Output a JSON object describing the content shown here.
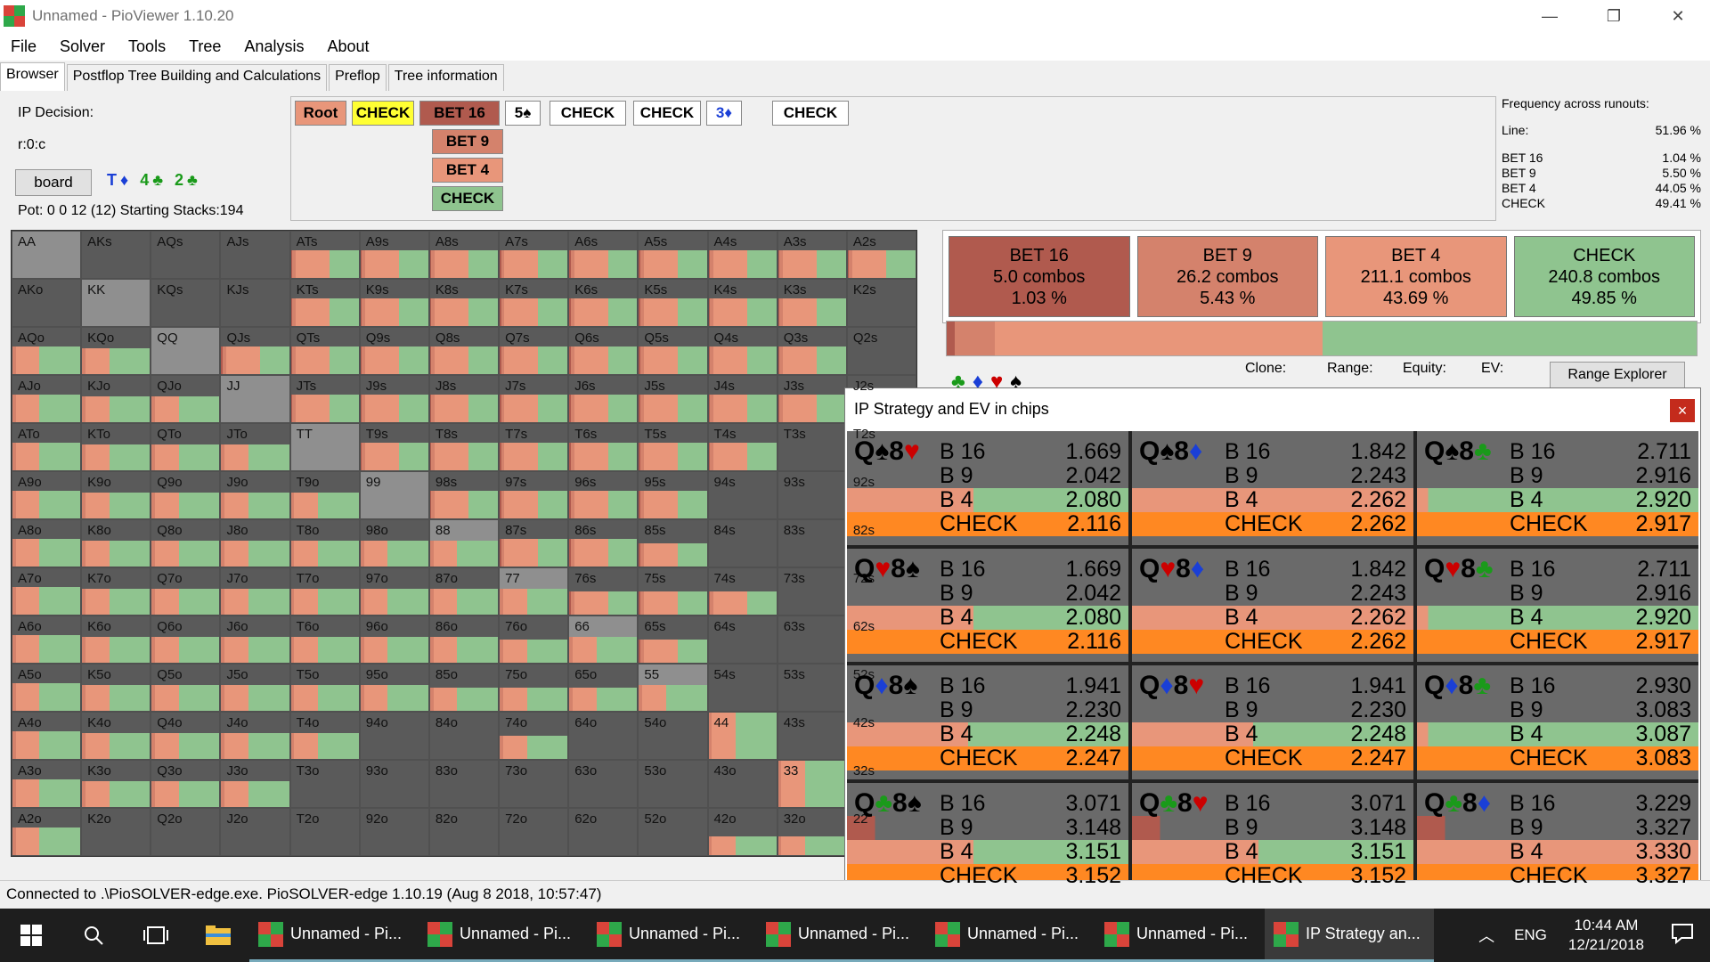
{
  "window": {
    "title": "Unnamed - PioViewer 1.10.20",
    "min": "—",
    "max": "❐",
    "close": "✕"
  },
  "menu": [
    "File",
    "Solver",
    "Tools",
    "Tree",
    "Analysis",
    "About"
  ],
  "tabs": [
    "Browser",
    "Postflop Tree Building and Calculations",
    "Preflop",
    "Tree information"
  ],
  "left": {
    "decision": "IP Decision:",
    "node": "r:0:c",
    "board_btn": "board",
    "board_cards": "T♦ 4♣ 2♣",
    "pot": "Pot: 0 0 12 (12) Starting Stacks:194"
  },
  "tree": {
    "row1": [
      {
        "label": "Root",
        "bg": "#e8967a"
      },
      {
        "label": "CHECK",
        "bg": "#ffff33"
      },
      {
        "label": "BET 16",
        "bg": "#b05a4e"
      },
      {
        "label": "5♠",
        "bg": "#fff"
      },
      {
        "label": "CHECK",
        "bg": "#fff"
      },
      {
        "label": "CHECK",
        "bg": "#fff"
      },
      {
        "label": "3♦",
        "bg": "#fff"
      },
      {
        "label": "CHECK",
        "bg": "#fff"
      }
    ],
    "col": [
      {
        "label": "BET 9",
        "bg": "#d4826c"
      },
      {
        "label": "BET 4",
        "bg": "#e8967a"
      },
      {
        "label": "CHECK",
        "bg": "#8fc48f"
      }
    ]
  },
  "freq": {
    "title": "Frequency across runouts:",
    "line_label": "Line:",
    "line_value": "51.96 %",
    "rows": [
      {
        "k": "BET 16",
        "v": "1.04 %"
      },
      {
        "k": "BET 9",
        "v": "5.50 %"
      },
      {
        "k": "BET 4",
        "v": "44.05 %"
      },
      {
        "k": "CHECK",
        "v": "49.41 %"
      }
    ]
  },
  "hands": [
    "AA",
    "AKs",
    "AQs",
    "AJs",
    "ATs",
    "A9s",
    "A8s",
    "A7s",
    "A6s",
    "A5s",
    "A4s",
    "A3s",
    "A2s",
    "AKo",
    "KK",
    "KQs",
    "KJs",
    "KTs",
    "K9s",
    "K8s",
    "K7s",
    "K6s",
    "K5s",
    "K4s",
    "K3s",
    "K2s",
    "AQo",
    "KQo",
    "QQ",
    "QJs",
    "QTs",
    "Q9s",
    "Q8s",
    "Q7s",
    "Q6s",
    "Q5s",
    "Q4s",
    "Q3s",
    "Q2s",
    "AJo",
    "KJo",
    "QJo",
    "JJ",
    "JTs",
    "J9s",
    "J8s",
    "J7s",
    "J6s",
    "J5s",
    "J4s",
    "J3s",
    "J2s",
    "ATo",
    "KTo",
    "QTo",
    "JTo",
    "TT",
    "T9s",
    "T8s",
    "T7s",
    "T6s",
    "T5s",
    "T4s",
    "T3s",
    "T2s",
    "A9o",
    "K9o",
    "Q9o",
    "J9o",
    "T9o",
    "99",
    "98s",
    "97s",
    "96s",
    "95s",
    "94s",
    "93s",
    "92s",
    "A8o",
    "K8o",
    "Q8o",
    "J8o",
    "T8o",
    "98o",
    "88",
    "87s",
    "86s",
    "85s",
    "84s",
    "83s",
    "82s",
    "A7o",
    "K7o",
    "Q7o",
    "J7o",
    "T7o",
    "97o",
    "87o",
    "77",
    "76s",
    "75s",
    "74s",
    "73s",
    "72s",
    "A6o",
    "K6o",
    "Q6o",
    "J6o",
    "T6o",
    "96o",
    "86o",
    "76o",
    "66",
    "65s",
    "64s",
    "63s",
    "62s",
    "A5o",
    "K5o",
    "Q5o",
    "J5o",
    "T5o",
    "95o",
    "85o",
    "75o",
    "65o",
    "55",
    "54s",
    "53s",
    "52s",
    "A4o",
    "K4o",
    "Q4o",
    "J4o",
    "T4o",
    "94o",
    "84o",
    "74o",
    "64o",
    "54o",
    "44",
    "43s",
    "42s",
    "A3o",
    "K3o",
    "Q3o",
    "J3o",
    "T3o",
    "93o",
    "83o",
    "73o",
    "63o",
    "53o",
    "43o",
    "33",
    "32s",
    "A2o",
    "K2o",
    "Q2o",
    "J2o",
    "T2o",
    "92o",
    "82o",
    "72o",
    "62o",
    "52o",
    "42o",
    "32o",
    "22"
  ],
  "actions": [
    {
      "name": "BET 16",
      "combos": "5.0 combos",
      "pct": "1.03 %",
      "bg": "#b05a4e"
    },
    {
      "name": "BET 9",
      "combos": "26.2 combos",
      "pct": "5.43 %",
      "bg": "#d4826c"
    },
    {
      "name": "BET 4",
      "combos": "211.1 combos",
      "pct": "43.69 %",
      "bg": "#e8967a"
    },
    {
      "name": "CHECK",
      "combos": "240.8 combos",
      "pct": "49.85 %",
      "bg": "#8fc48f"
    }
  ],
  "freqbar": [
    0.0103,
    0.0543,
    0.4369,
    0.4985
  ],
  "bottom": {
    "clone": "Clone:",
    "range": "Range:",
    "equity": "Equity:",
    "ev": "EV:",
    "range_explorer": "Range Explorer"
  },
  "popup": {
    "title": "IP Strategy and EV in chips",
    "close": "×",
    "combos": [
      {
        "hand": "Q♠8♥",
        "c1": "#000",
        "c2": "#cc0000",
        "vals": [
          "1.669",
          "2.042",
          "2.080",
          "2.116"
        ],
        "freqs": [
          0,
          0,
          0.55,
          1
        ]
      },
      {
        "hand": "Q♠8♦",
        "c1": "#000",
        "c2": "#1a3fd6",
        "vals": [
          "1.842",
          "2.243",
          "2.262",
          "2.262"
        ],
        "freqs": [
          0,
          0,
          1,
          1
        ]
      },
      {
        "hand": "Q♠8♣",
        "c1": "#000",
        "c2": "#1a9a1a",
        "vals": [
          "2.711",
          "2.916",
          "2.920",
          "2.917"
        ],
        "freqs": [
          0,
          0,
          0.96,
          1
        ]
      },
      {
        "hand": "Q♥8♠",
        "c1": "#cc0000",
        "c2": "#000",
        "vals": [
          "1.669",
          "2.042",
          "2.080",
          "2.116"
        ],
        "freqs": [
          0,
          0,
          0.55,
          1
        ]
      },
      {
        "hand": "Q♥8♦",
        "c1": "#cc0000",
        "c2": "#1a3fd6",
        "vals": [
          "1.842",
          "2.243",
          "2.262",
          "2.262"
        ],
        "freqs": [
          0,
          0,
          1,
          1
        ]
      },
      {
        "hand": "Q♥8♣",
        "c1": "#cc0000",
        "c2": "#1a9a1a",
        "vals": [
          "2.711",
          "2.916",
          "2.920",
          "2.917"
        ],
        "freqs": [
          0,
          0,
          0.96,
          1
        ]
      },
      {
        "hand": "Q♦8♠",
        "c1": "#1a3fd6",
        "c2": "#000",
        "vals": [
          "1.941",
          "2.230",
          "2.248",
          "2.247"
        ],
        "freqs": [
          0,
          0,
          0.57,
          1
        ]
      },
      {
        "hand": "Q♦8♥",
        "c1": "#1a3fd6",
        "c2": "#cc0000",
        "vals": [
          "1.941",
          "2.230",
          "2.248",
          "2.247"
        ],
        "freqs": [
          0,
          0,
          0.57,
          1
        ]
      },
      {
        "hand": "Q♦8♣",
        "c1": "#1a3fd6",
        "c2": "#1a9a1a",
        "vals": [
          "2.930",
          "3.083",
          "3.087",
          "3.083"
        ],
        "freqs": [
          0,
          0,
          0.96,
          1
        ]
      },
      {
        "hand": "Q♣8♠",
        "c1": "#1a9a1a",
        "c2": "#000",
        "vals": [
          "3.071",
          "3.148",
          "3.151",
          "3.152"
        ],
        "freqs": [
          0,
          0.1,
          0.55,
          1
        ]
      },
      {
        "hand": "Q♣8♥",
        "c1": "#1a9a1a",
        "c2": "#cc0000",
        "vals": [
          "3.071",
          "3.148",
          "3.151",
          "3.152"
        ],
        "freqs": [
          0,
          0.1,
          0.55,
          1
        ]
      },
      {
        "hand": "Q♣8♦",
        "c1": "#1a9a1a",
        "c2": "#1a3fd6",
        "vals": [
          "3.229",
          "3.327",
          "3.330",
          "3.327"
        ],
        "freqs": [
          0,
          0.1,
          1,
          1
        ]
      }
    ]
  },
  "status": "Connected to .\\PioSOLVER-edge.exe. PioSOLVER-edge 1.10.19 (Aug  8 2018, 10:57:47)",
  "taskbar": {
    "apps": [
      "Unnamed - Pi...",
      "Unnamed - Pi...",
      "Unnamed - Pi...",
      "Unnamed - Pi...",
      "Unnamed - Pi...",
      "Unnamed - Pi...",
      "IP Strategy an..."
    ],
    "lang": "ENG",
    "time": "10:44 AM",
    "date": "12/21/2018"
  }
}
